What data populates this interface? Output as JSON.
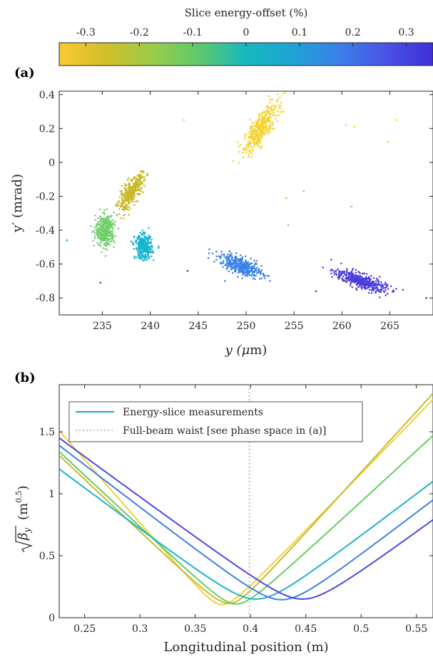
{
  "colorbar": {
    "title": "Slice energy-offset (%)",
    "ticks": [
      "-0.3",
      "-0.2",
      "-0.1",
      "0",
      "0.1",
      "0.2",
      "0.3"
    ],
    "tick_values": [
      -0.3,
      -0.2,
      -0.1,
      0,
      0.1,
      0.2,
      0.3
    ],
    "range": [
      -0.35,
      0.35
    ],
    "colors": [
      "#fac933",
      "#d1bf2a",
      "#9acc4a",
      "#5ec96d",
      "#17b8bf",
      "#1fa3d6",
      "#3b7fe8",
      "#4a52e6",
      "#3f2fd6"
    ]
  },
  "panels": {
    "a": {
      "letter": "(a)"
    },
    "b": {
      "letter": "(b)"
    }
  },
  "chart_data": [
    {
      "type": "scatter",
      "panel": "a",
      "title": "",
      "xlabel_pre": "y (",
      "xlabel_mu": "μ",
      "xlabel_post": "m)",
      "ylabel": "y′ (mrad)",
      "xlim": [
        230.5,
        269.5
      ],
      "ylim": [
        -0.9,
        0.42
      ],
      "xticks": [
        "235",
        "240",
        "245",
        "250",
        "255",
        "260",
        "265"
      ],
      "xtick_values": [
        235,
        240,
        245,
        250,
        255,
        260,
        265
      ],
      "yticks": [
        "0.4",
        "0.2",
        "0",
        "-0.2",
        "-0.4",
        "-0.6",
        "-0.8"
      ],
      "ytick_values": [
        0.4,
        0.2,
        0,
        -0.2,
        -0.4,
        -0.6,
        -0.8
      ],
      "clusters": [
        {
          "energy_offset": -0.3,
          "color": "#f3d433",
          "cx": 251.5,
          "cy": 0.2,
          "sx": 1.6,
          "sy": 0.045,
          "slope": 0.065,
          "n": 420
        },
        {
          "energy_offset": -0.2,
          "color": "#c8b92c",
          "cx": 238.0,
          "cy": -0.18,
          "sx": 1.2,
          "sy": 0.035,
          "slope": 0.06,
          "n": 380
        },
        {
          "energy_offset": -0.15,
          "color": "#6fcf6a",
          "cx": 235.3,
          "cy": -0.4,
          "sx": 0.9,
          "sy": 0.045,
          "slope": 0.01,
          "n": 380
        },
        {
          "energy_offset": 0.05,
          "color": "#19b4cf",
          "cx": 239.3,
          "cy": -0.5,
          "sx": 0.8,
          "sy": 0.035,
          "slope": -0.005,
          "n": 350
        },
        {
          "energy_offset": 0.15,
          "color": "#3a82e8",
          "cx": 249.5,
          "cy": -0.61,
          "sx": 2.0,
          "sy": 0.025,
          "slope": -0.02,
          "n": 420
        },
        {
          "energy_offset": 0.3,
          "color": "#4a3ddd",
          "cx": 262.0,
          "cy": -0.7,
          "sx": 2.4,
          "sy": 0.022,
          "slope": -0.018,
          "n": 430
        }
      ],
      "outliers": [
        {
          "x": 231.3,
          "y": -0.46,
          "color": "#19b4cf"
        },
        {
          "x": 234.8,
          "y": -0.71,
          "color": "#4a3ddd"
        },
        {
          "x": 243.5,
          "y": 0.25,
          "color": "#f3d433"
        },
        {
          "x": 243.9,
          "y": -0.64,
          "color": "#4a3ddd"
        },
        {
          "x": 247.8,
          "y": -0.7,
          "color": "#3a82e8"
        },
        {
          "x": 254.2,
          "y": -0.21,
          "color": "#c8b92c"
        },
        {
          "x": 254.4,
          "y": -0.37,
          "color": "#6fcf6a"
        },
        {
          "x": 256.0,
          "y": -0.17,
          "color": "#c8b92c"
        },
        {
          "x": 261.0,
          "y": -0.26,
          "color": "#c8b92c"
        },
        {
          "x": 260.4,
          "y": 0.22,
          "color": "#f3d433"
        },
        {
          "x": 261.3,
          "y": 0.21,
          "color": "#f3d433"
        },
        {
          "x": 264.8,
          "y": 0.12,
          "color": "#f3d433"
        },
        {
          "x": 265.7,
          "y": 0.25,
          "color": "#f3d433"
        },
        {
          "x": 268.8,
          "y": -0.8,
          "color": "#4a3ddd"
        },
        {
          "x": 257.3,
          "y": -0.76,
          "color": "#4a3ddd"
        }
      ]
    },
    {
      "type": "line",
      "panel": "b",
      "title": "",
      "xlabel": "Longitudinal position (m)",
      "ylabel_root": "β",
      "ylabel_sub": "y",
      "ylabel_unit_pre": "(m",
      "ylabel_unit_sup": "0.5",
      "ylabel_unit_post": ")",
      "xlim": [
        0.227,
        0.565
      ],
      "ylim": [
        0,
        1.88
      ],
      "xticks": [
        "0.25",
        "0.3",
        "0.35",
        "0.4",
        "0.45",
        "0.5",
        "0.55"
      ],
      "xtick_values": [
        0.25,
        0.3,
        0.35,
        0.4,
        0.45,
        0.5,
        0.55
      ],
      "yticks": [
        "0",
        "0.5",
        "1",
        "1.5"
      ],
      "ytick_values": [
        0,
        0.5,
        1,
        1.5
      ],
      "legend": {
        "position": "top-left",
        "entries": [
          {
            "label": "Energy-slice measurements",
            "style": "solid",
            "color": "#14a8cf"
          },
          {
            "label": "Full-beam waist [see phase space in (a)]",
            "style": "dotted",
            "color": "#c0c0c0"
          }
        ]
      },
      "waist_position": 0.399,
      "series": [
        {
          "color": "#f1d23a",
          "waist_s": 0.374,
          "waist_val": 0.105,
          "left_val": 1.51,
          "right_val": 1.76
        },
        {
          "color": "#c9ba30",
          "waist_s": 0.381,
          "waist_val": 0.115,
          "left_val": 1.31,
          "right_val": 1.81
        },
        {
          "color": "#66cc66",
          "waist_s": 0.387,
          "waist_val": 0.11,
          "left_val": 1.34,
          "right_val": 1.47
        },
        {
          "color": "#1ab4cb",
          "waist_s": 0.405,
          "waist_val": 0.15,
          "left_val": 1.2,
          "right_val": 1.1
        },
        {
          "color": "#3c80e6",
          "waist_s": 0.428,
          "waist_val": 0.145,
          "left_val": 1.39,
          "right_val": 0.95
        },
        {
          "color": "#4b48e0",
          "waist_s": 0.447,
          "waist_val": 0.15,
          "left_val": 1.45,
          "right_val": 0.79
        }
      ]
    }
  ]
}
